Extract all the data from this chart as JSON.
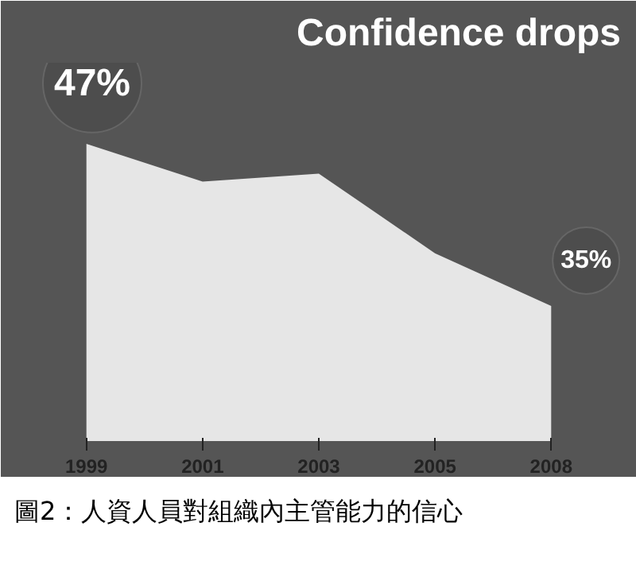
{
  "chart_data": {
    "type": "area",
    "title": "Confidence drops",
    "categories": [
      "1999",
      "2001",
      "2003",
      "2005",
      "2008"
    ],
    "ylim": [
      25,
      53
    ],
    "tick_labels": "x",
    "series": [
      {
        "color": "#e6e6e6",
        "values": [
          47,
          44.2,
          44.8,
          38.9,
          35
        ],
        "value_labels": [
          "47%",
          null,
          null,
          null,
          "35%"
        ]
      }
    ],
    "annotations": [
      "圖2：人資人員對組織內主管能力的信心"
    ],
    "grid": false
  }
}
